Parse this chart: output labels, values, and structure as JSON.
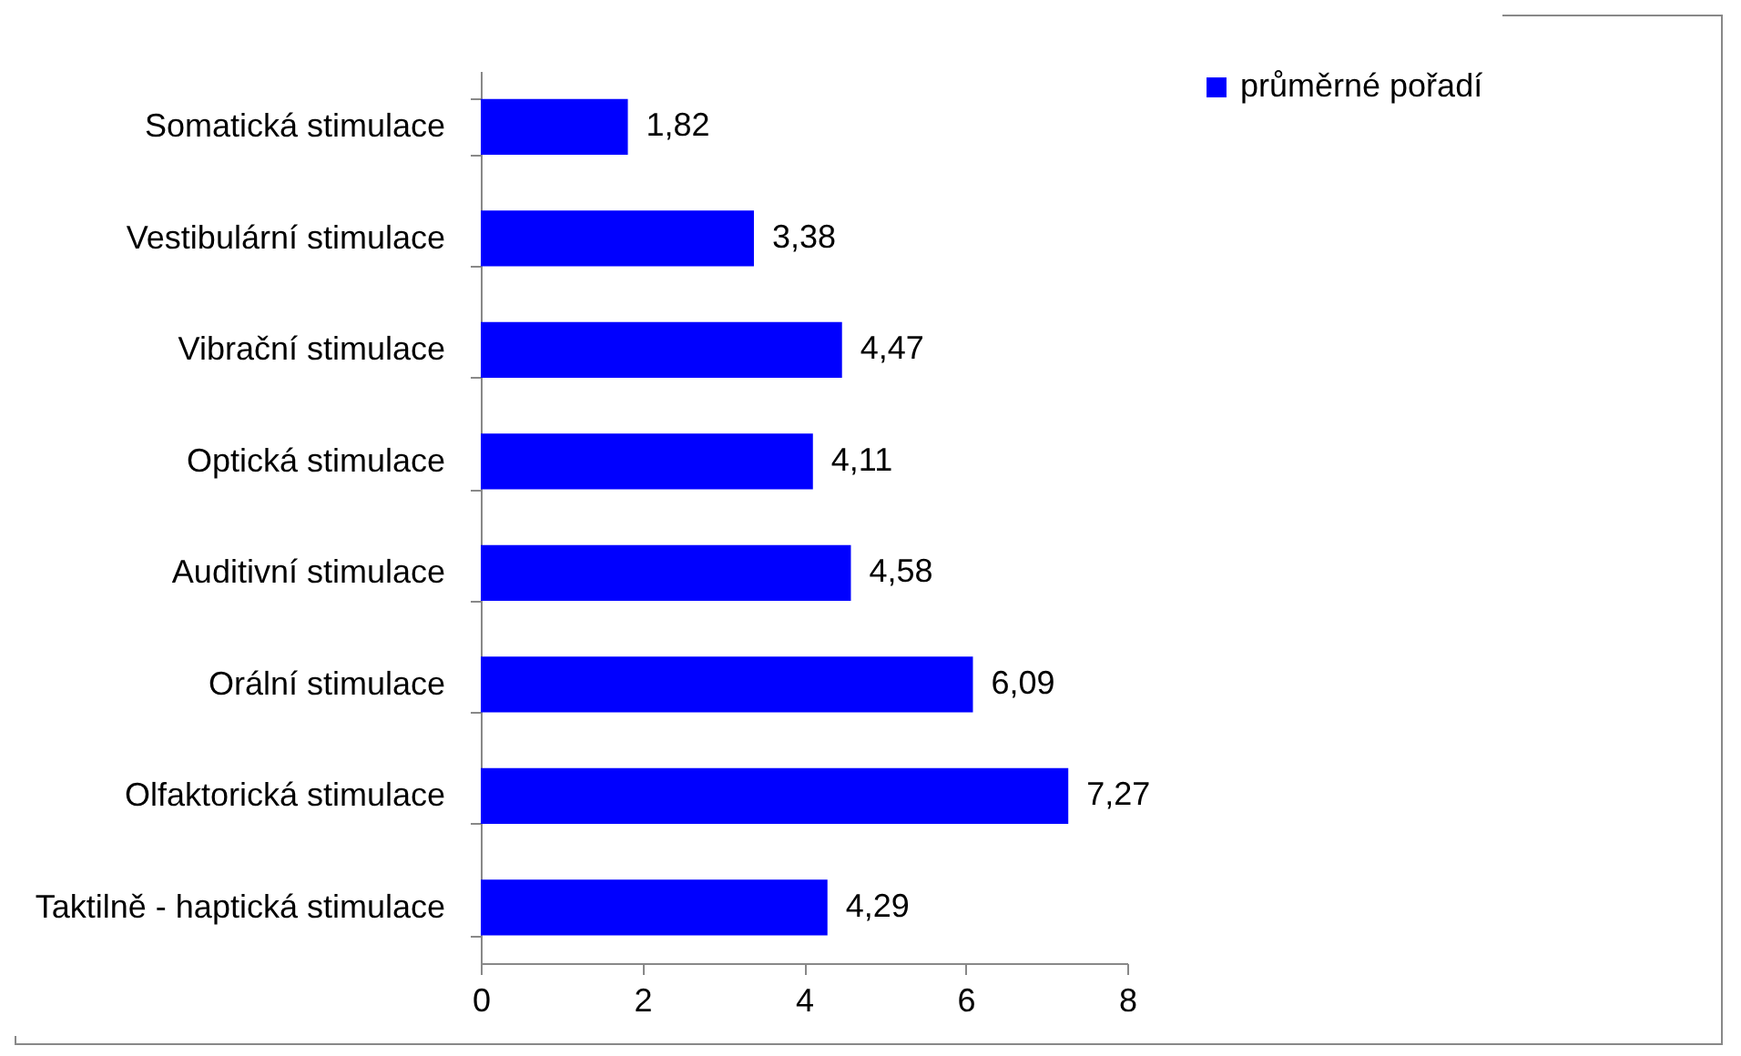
{
  "chart_data": {
    "type": "bar",
    "orientation": "horizontal",
    "categories": [
      "Somatická stimulace",
      "Vestibulární stimulace",
      "Vibrační stimulace",
      "Optická stimulace",
      "Auditivní stimulace",
      "Orální stimulace",
      "Olfaktorická stimulace",
      "Taktilně - haptická stimulace"
    ],
    "series": [
      {
        "name": "průměrné pořadí",
        "color": "#0000ff",
        "values": [
          1.82,
          3.38,
          4.47,
          4.11,
          4.58,
          6.09,
          7.27,
          4.29
        ],
        "value_labels": [
          "1,82",
          "3,38",
          "4,47",
          "4,11",
          "4,58",
          "6,09",
          "7,27",
          "4,29"
        ]
      }
    ],
    "xlim": [
      0,
      8
    ],
    "xticks": [
      0,
      2,
      4,
      6,
      8
    ],
    "legend": "right"
  }
}
